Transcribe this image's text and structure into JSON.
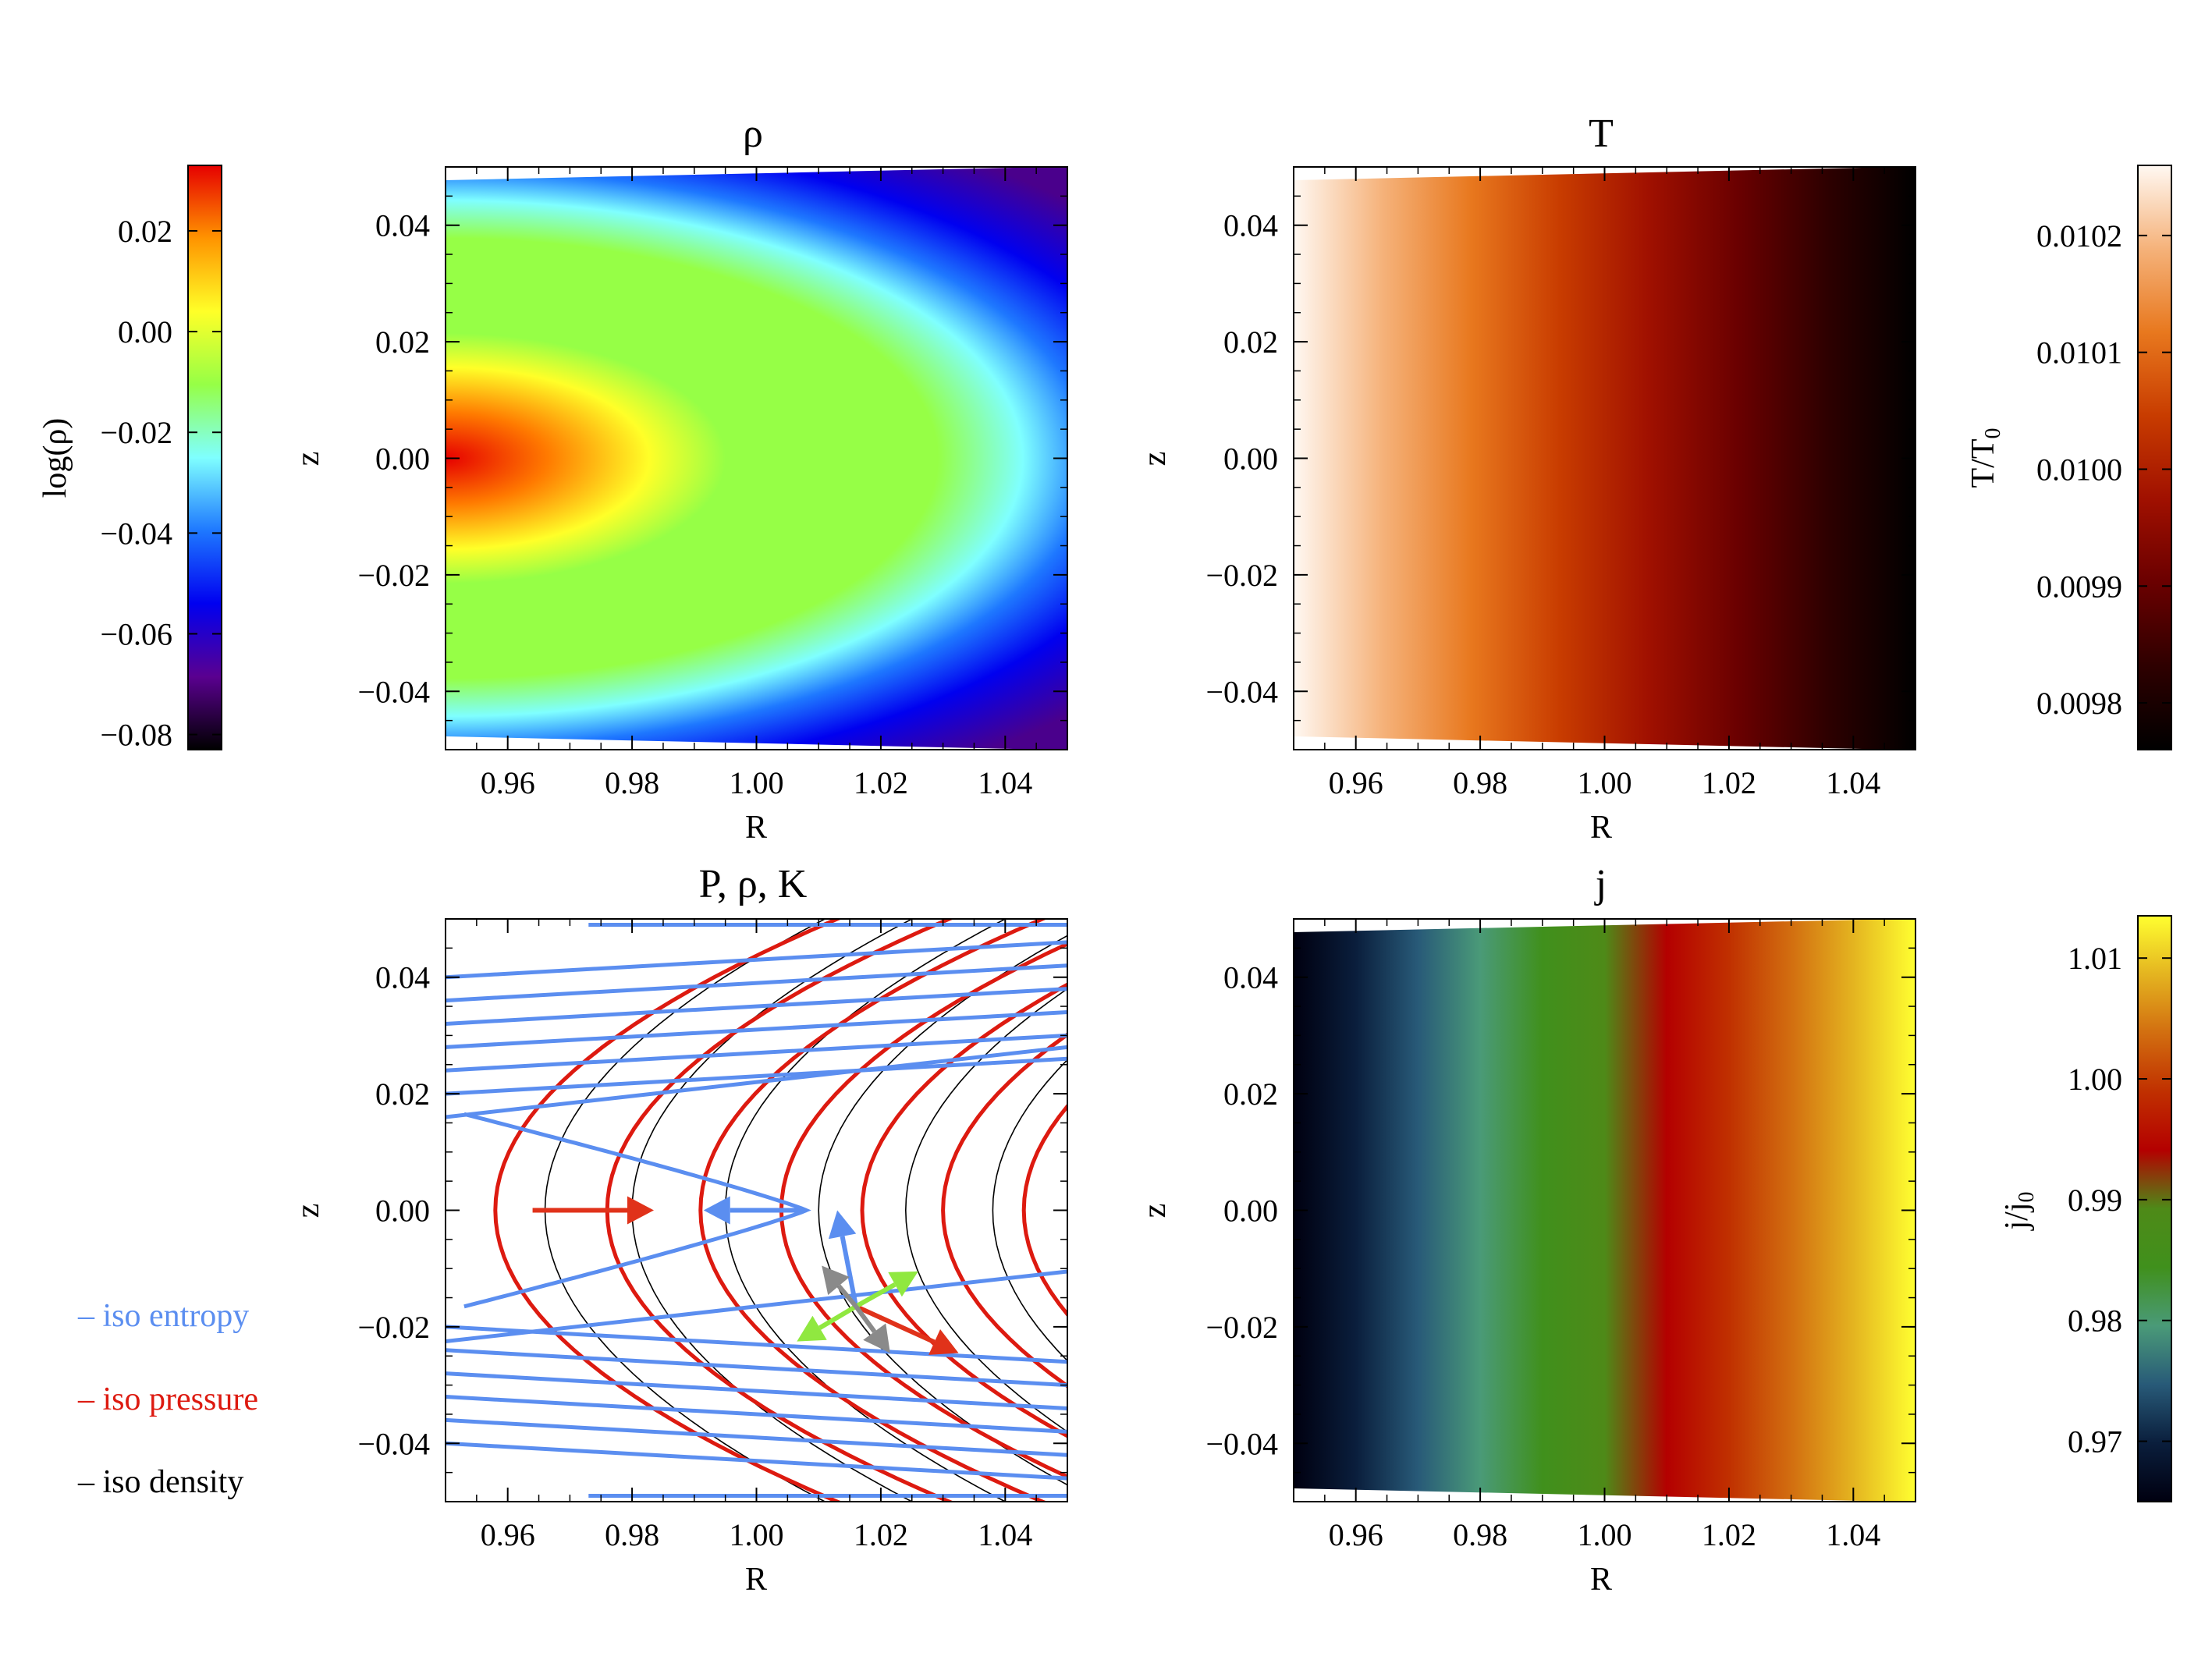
{
  "chart_data": [
    {
      "id": "rho",
      "type": "heatmap",
      "title": "ρ",
      "xlabel": "R",
      "ylabel": "z",
      "xlim": [
        0.95,
        1.05
      ],
      "ylim": [
        -0.05,
        0.05
      ],
      "xticks": [
        "0.96",
        "0.98",
        "1.00",
        "1.02",
        "1.04"
      ],
      "yticks": [
        "0.04",
        "0.02",
        "0.00",
        "−0.02",
        "−0.04"
      ],
      "colorbar": {
        "label": "log(ρ)",
        "side": "left",
        "range": [
          -0.083,
          0.033
        ],
        "ticks": [
          "0.02",
          "0.00",
          "−0.02",
          "−0.04",
          "−0.06",
          "−0.08"
        ],
        "tick_values": [
          0.02,
          0.0,
          -0.02,
          -0.04,
          -0.06,
          -0.08
        ],
        "colormap": [
          "#000000",
          "#5a0090",
          "#0000f0",
          "#1e78ff",
          "#7fffff",
          "#96ff46",
          "#ffff28",
          "#ff9400",
          "#e60000"
        ]
      }
    },
    {
      "id": "T",
      "type": "heatmap",
      "title": "T",
      "xlabel": "R",
      "ylabel": "z",
      "xlim": [
        0.95,
        1.05
      ],
      "ylim": [
        -0.05,
        0.05
      ],
      "xticks": [
        "0.96",
        "0.98",
        "1.00",
        "1.02",
        "1.04"
      ],
      "yticks": [
        "0.04",
        "0.02",
        "0.00",
        "−0.02",
        "−0.04"
      ],
      "colorbar": {
        "label": "T/T₀",
        "side": "right",
        "range": [
          0.00976,
          0.01026
        ],
        "ticks": [
          "0.0102",
          "0.0101",
          "0.0100",
          "0.0099",
          "0.0098"
        ],
        "tick_values": [
          0.0102,
          0.0101,
          0.01,
          0.0099,
          0.0098
        ],
        "colormap": [
          "#000000",
          "#2e0000",
          "#6a0000",
          "#a01000",
          "#c83c00",
          "#e8781e",
          "#f5b27a",
          "#fff8f2"
        ]
      }
    },
    {
      "id": "contours",
      "type": "line",
      "title": "P, ρ, K",
      "xlabel": "R",
      "ylabel": "z",
      "xlim": [
        0.95,
        1.05
      ],
      "ylim": [
        -0.05,
        0.05
      ],
      "xticks": [
        "0.96",
        "0.98",
        "1.00",
        "1.02",
        "1.04"
      ],
      "yticks": [
        "0.04",
        "0.02",
        "0.00",
        "−0.02",
        "−0.04"
      ],
      "legend": [
        {
          "name": "iso entropy",
          "color": "#5b8ef0"
        },
        {
          "name": "iso pressure",
          "color": "#dd1a10"
        },
        {
          "name": "iso density",
          "color": "#000000"
        }
      ],
      "pressure_vertices_R": [
        0.958,
        0.976,
        0.991,
        1.004,
        1.017,
        1.03,
        1.043
      ],
      "density_vertices_R": [
        0.966,
        0.98,
        0.995,
        1.01,
        1.024,
        1.038,
        1.052
      ],
      "entropy_tip_R": 1.008,
      "arrow_colors": [
        "#e0321a",
        "#5b8ef0",
        "#90e840",
        "#8a8a8a"
      ]
    },
    {
      "id": "j",
      "type": "heatmap",
      "title": "j",
      "xlabel": "R",
      "ylabel": "z",
      "xlim": [
        0.95,
        1.05
      ],
      "ylim": [
        -0.05,
        0.05
      ],
      "xticks": [
        "0.96",
        "0.98",
        "1.00",
        "1.02",
        "1.04"
      ],
      "yticks": [
        "0.04",
        "0.02",
        "0.00",
        "−0.02",
        "−0.04"
      ],
      "colorbar": {
        "label": "j/j₀",
        "side": "right",
        "range": [
          0.965,
          1.0135
        ],
        "ticks": [
          "1.01",
          "1.00",
          "0.99",
          "0.98",
          "0.97"
        ],
        "tick_values": [
          1.01,
          1.0,
          0.99,
          0.98,
          0.97
        ],
        "colormap": [
          "#000010",
          "#0a1e3c",
          "#285a78",
          "#4a9a78",
          "#40901c",
          "#4e8a18",
          "#b40000",
          "#c03000",
          "#d26e10",
          "#e4b420",
          "#ffff30"
        ]
      }
    }
  ]
}
